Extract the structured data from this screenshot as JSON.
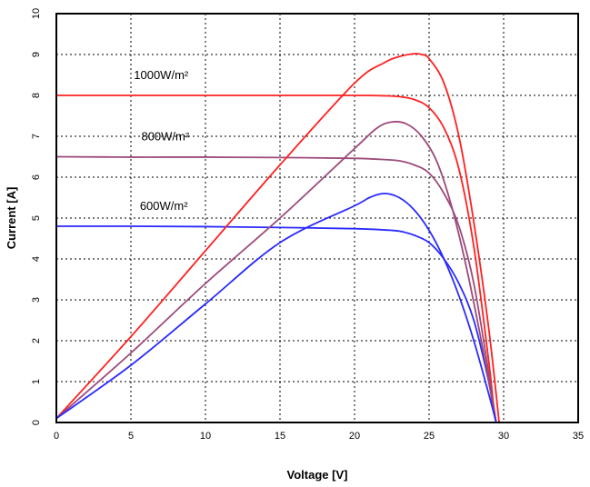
{
  "chart_data": {
    "type": "line",
    "title": "",
    "xlabel": "Voltage [V]",
    "ylabel": "Current [A]",
    "xlim": [
      0,
      35
    ],
    "ylim": [
      0,
      10
    ],
    "xticks": [
      "0",
      "5",
      "10",
      "15",
      "20",
      "25",
      "30",
      "35"
    ],
    "yticks": [
      "0",
      "1",
      "2",
      "3",
      "4",
      "5",
      "6",
      "7",
      "8",
      "9",
      "10"
    ],
    "grid": true,
    "legend": "none",
    "annotations": [
      {
        "text": "1000W/m²",
        "x": 5.2,
        "y": 8.4
      },
      {
        "text": "800W/m²",
        "x": 5.7,
        "y": 6.9
      },
      {
        "text": "600W/m²",
        "x": 5.6,
        "y": 5.2
      }
    ],
    "series": [
      {
        "kind": "I-V",
        "color": "#ff2020",
        "x": [
          0,
          5,
          10,
          15,
          20,
          22,
          23,
          24,
          25,
          26,
          27,
          28,
          29,
          29.3,
          29.5
        ],
        "y": [
          8.0,
          8.0,
          8.0,
          8.0,
          8.0,
          7.99,
          7.97,
          7.9,
          7.7,
          7.2,
          6.2,
          4.3,
          1.5,
          0.5,
          0
        ]
      },
      {
        "kind": "I-V",
        "color": "#9c4a7a",
        "x": [
          0,
          5,
          10,
          15,
          20,
          22,
          23,
          24,
          25,
          26,
          27,
          28,
          29,
          29.3,
          29.5
        ],
        "y": [
          6.5,
          6.49,
          6.49,
          6.48,
          6.46,
          6.43,
          6.4,
          6.3,
          6.1,
          5.6,
          4.8,
          3.4,
          1.2,
          0.4,
          0
        ]
      },
      {
        "kind": "I-V",
        "color": "#2a2aff",
        "x": [
          0,
          5,
          10,
          15,
          20,
          22,
          23,
          24,
          25,
          26,
          27,
          28,
          29,
          29.3,
          29.5
        ],
        "y": [
          4.8,
          4.8,
          4.79,
          4.77,
          4.74,
          4.71,
          4.68,
          4.58,
          4.4,
          4.0,
          3.4,
          2.5,
          1.0,
          0.35,
          0
        ]
      },
      {
        "kind": "P-V",
        "color": "#ff2020",
        "x": [
          0,
          5,
          10,
          15,
          20,
          22,
          23,
          24,
          24.5,
          25,
          26,
          27,
          28,
          29,
          29.7
        ],
        "y": [
          0.1,
          2.1,
          4.2,
          6.3,
          8.3,
          8.8,
          8.95,
          9.02,
          9.0,
          8.9,
          8.3,
          7.0,
          4.9,
          2.3,
          0
        ]
      },
      {
        "kind": "P-V",
        "color": "#9c4a7a",
        "x": [
          0,
          5,
          10,
          15,
          20,
          21.5,
          22.5,
          23.5,
          24.5,
          25.5,
          26.5,
          27.5,
          28.5,
          29.5
        ],
        "y": [
          0.1,
          1.7,
          3.4,
          5.0,
          6.7,
          7.2,
          7.35,
          7.3,
          7.0,
          6.4,
          5.3,
          3.8,
          2.0,
          0
        ]
      },
      {
        "kind": "P-V",
        "color": "#2a2aff",
        "x": [
          0,
          5,
          10,
          15,
          20,
          21,
          22,
          23,
          24,
          25,
          26,
          27,
          28,
          29,
          29.5
        ],
        "y": [
          0.1,
          1.4,
          2.9,
          4.4,
          5.3,
          5.5,
          5.6,
          5.5,
          5.2,
          4.7,
          4.0,
          3.1,
          2.0,
          0.7,
          0
        ]
      }
    ]
  }
}
